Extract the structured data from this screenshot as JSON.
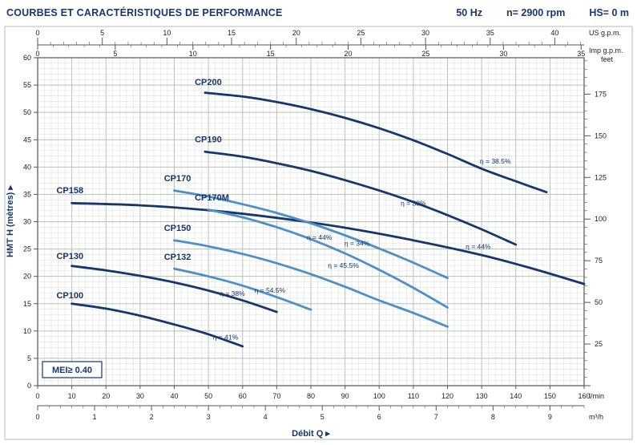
{
  "header": {
    "title": "COURBES ET CARACTÉRISTIQUES DE PERFORMANCE",
    "specs": [
      "50 Hz",
      "n= 2900 rpm",
      "HS= 0 m"
    ]
  },
  "chart_data": {
    "type": "line",
    "title": "COURBES ET CARACTÉRISTIQUES DE PERFORMANCE",
    "xlabel": "Débit Q  ▸",
    "ylabel": "HMT H (mètres)  ▸",
    "grid": true,
    "colors": {
      "dark": "#17366d",
      "light": "#4e8ec9",
      "grid_minor": "#dce0dc",
      "grid_major": "#b7c0b7",
      "border": "#555555",
      "frame": "#b9b9b9"
    },
    "x_primary": {
      "unit": "l/min",
      "min": 0,
      "max": 160,
      "tick_step": 10
    },
    "x_secondary_m3h": {
      "unit": "m³/h",
      "min": 0,
      "max": 9,
      "lmin_per_unit": 16.6667
    },
    "x_top_usgpm": {
      "unit": "US g.p.m.",
      "min": 0,
      "max": 40,
      "tick_step": 5,
      "lmin_per_unit": 3.78541
    },
    "x_top_impgpm": {
      "unit": "Imp g.p.m.",
      "min": 0,
      "max": 35,
      "tick_step": 5,
      "lmin_per_unit": 4.54609
    },
    "y_primary": {
      "unit": "mètres",
      "min": 0,
      "max": 60,
      "tick_step": 5
    },
    "y_right_feet": {
      "unit": "feet",
      "label_step": 25,
      "minor_step": 5,
      "m_per_unit": 0.3048
    },
    "series": [
      {
        "name": "CP100",
        "color_key": "dark",
        "label_pos": [
          5.5,
          16.0
        ],
        "points": [
          [
            10,
            15.0
          ],
          [
            20,
            14.1
          ],
          [
            30,
            12.8
          ],
          [
            40,
            11.2
          ],
          [
            50,
            9.4
          ],
          [
            60,
            7.2
          ]
        ]
      },
      {
        "name": "CP130",
        "color_key": "dark",
        "label_pos": [
          5.5,
          23.2
        ],
        "points": [
          [
            10,
            21.9
          ],
          [
            20,
            21.1
          ],
          [
            30,
            20.1
          ],
          [
            40,
            18.9
          ],
          [
            50,
            17.4
          ],
          [
            60,
            15.6
          ],
          [
            70,
            13.5
          ]
        ]
      },
      {
        "name": "CP132",
        "color_key": "light",
        "label_pos": [
          37,
          23.0
        ],
        "points": [
          [
            40,
            21.4
          ],
          [
            50,
            20.0
          ],
          [
            60,
            18.3
          ],
          [
            70,
            16.2
          ],
          [
            80,
            13.9
          ]
        ]
      },
      {
        "name": "CP150",
        "color_key": "light",
        "label_pos": [
          37,
          28.3
        ],
        "points": [
          [
            40,
            26.6
          ],
          [
            50,
            25.5
          ],
          [
            60,
            24.1
          ],
          [
            70,
            22.4
          ],
          [
            80,
            20.4
          ],
          [
            90,
            18.1
          ],
          [
            100,
            15.6
          ],
          [
            110,
            13.3
          ],
          [
            120,
            10.8
          ]
        ]
      },
      {
        "name": "CP158",
        "color_key": "dark",
        "label_pos": [
          5.5,
          35.2
        ],
        "points": [
          [
            10,
            33.4
          ],
          [
            30,
            33.0
          ],
          [
            50,
            32.1
          ],
          [
            70,
            30.7
          ],
          [
            90,
            28.9
          ],
          [
            110,
            26.6
          ],
          [
            130,
            23.9
          ],
          [
            145,
            21.4
          ],
          [
            160,
            18.6
          ]
        ]
      },
      {
        "name": "CP170",
        "color_key": "light",
        "label_pos": [
          37,
          37.4
        ],
        "points": [
          [
            40,
            35.7
          ],
          [
            50,
            34.6
          ],
          [
            60,
            33.2
          ],
          [
            70,
            31.6
          ],
          [
            80,
            29.7
          ],
          [
            90,
            27.5
          ],
          [
            100,
            25.1
          ],
          [
            110,
            22.5
          ],
          [
            120,
            19.7
          ]
        ]
      },
      {
        "name": "CP170M",
        "color_key": "light",
        "label_pos": [
          46,
          33.9
        ],
        "points": [
          [
            50,
            32.2
          ],
          [
            60,
            30.8
          ],
          [
            70,
            29.0
          ],
          [
            80,
            26.8
          ],
          [
            90,
            24.2
          ],
          [
            100,
            21.2
          ],
          [
            110,
            17.9
          ],
          [
            120,
            14.3
          ]
        ]
      },
      {
        "name": "CP190",
        "color_key": "dark",
        "label_pos": [
          46,
          44.5
        ],
        "points": [
          [
            49,
            42.8
          ],
          [
            60,
            41.9
          ],
          [
            70,
            40.7
          ],
          [
            80,
            39.3
          ],
          [
            90,
            37.6
          ],
          [
            100,
            35.7
          ],
          [
            110,
            33.6
          ],
          [
            120,
            31.2
          ],
          [
            130,
            28.6
          ],
          [
            140,
            25.8
          ]
        ]
      },
      {
        "name": "CP200",
        "color_key": "dark",
        "label_pos": [
          46,
          55.0
        ],
        "points": [
          [
            49,
            53.6
          ],
          [
            60,
            52.9
          ],
          [
            70,
            51.9
          ],
          [
            80,
            50.6
          ],
          [
            90,
            49.0
          ],
          [
            100,
            47.1
          ],
          [
            110,
            44.9
          ],
          [
            120,
            42.4
          ],
          [
            130,
            39.7
          ],
          [
            140,
            37.4
          ],
          [
            149,
            35.4
          ]
        ]
      }
    ],
    "efficiency_labels": [
      {
        "text": "η = 38.5%",
        "pos": [
          134,
          40.6
        ]
      },
      {
        "text": "η = 33%",
        "pos": [
          110,
          32.9
        ]
      },
      {
        "text": "η = 44%",
        "pos": [
          82.5,
          26.7
        ]
      },
      {
        "text": "η = 34%",
        "pos": [
          93.5,
          25.6
        ]
      },
      {
        "text": "η = 44%",
        "pos": [
          129,
          25.0
        ]
      },
      {
        "text": "η = 45.5%",
        "pos": [
          89.5,
          21.6
        ]
      },
      {
        "text": "η = 38%",
        "pos": [
          57,
          16.4
        ]
      },
      {
        "text": "η = 54.5%",
        "pos": [
          68,
          17.0
        ]
      },
      {
        "text": "η = 41%",
        "pos": [
          55,
          8.4
        ]
      }
    ],
    "mei_label": "MEI≥ 0.40"
  }
}
